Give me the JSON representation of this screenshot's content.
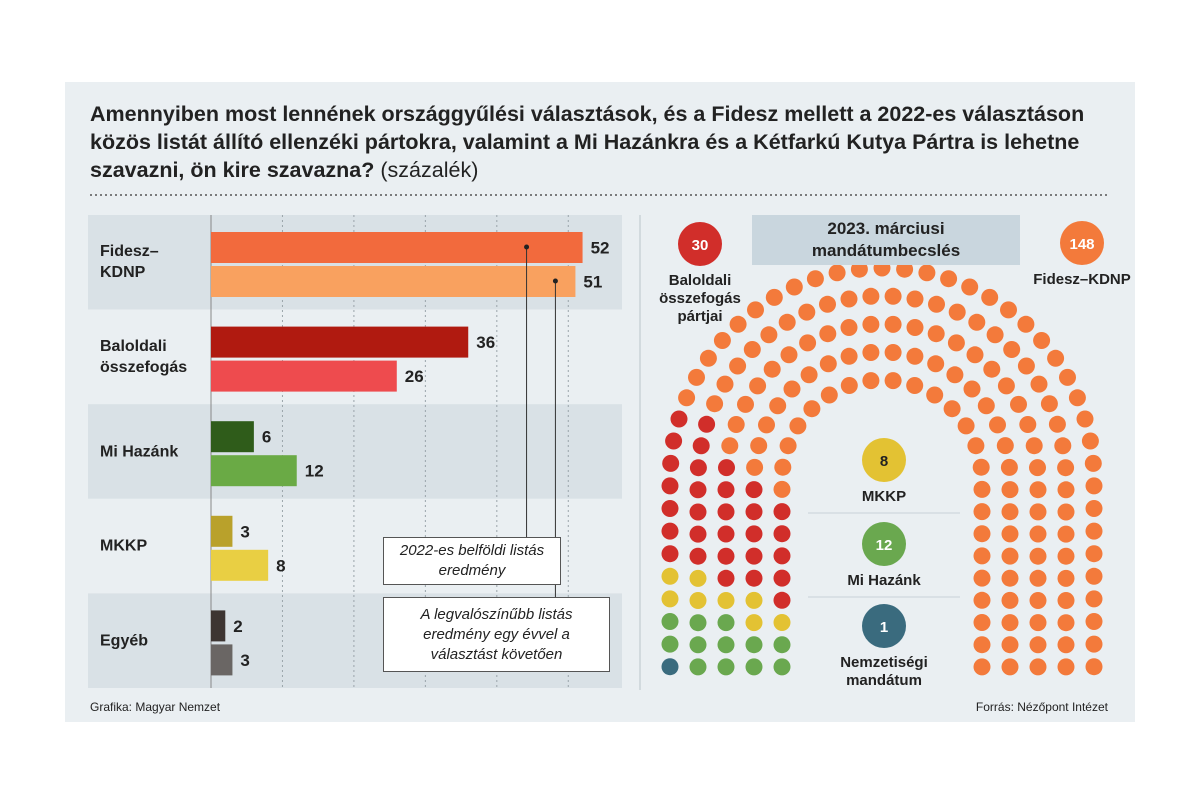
{
  "chart_data": [
    {
      "type": "bar",
      "orientation": "horizontal",
      "title": "Amennyiben most lennének országgyűlési választások, és a Fidesz mellett a 2022-es választáson közös listát állító ellenzéki pártokra, valamint a Mi Hazánkra és a Kétfarkú Kutya Pártra is lehetne szavazni, ön kire szavazna?",
      "subtitle": "(százalék)",
      "categories": [
        "Fidesz–KDNP",
        "Baloldali összefogás",
        "Mi Hazánk",
        "MKKP",
        "Egyéb"
      ],
      "series": [
        {
          "name": "2022-es belföldi listás eredmény",
          "colors": [
            "#f26a3d",
            "#b01a10",
            "#2f5c1a",
            "#b9a12b",
            "#3d3532"
          ],
          "values": [
            52,
            36,
            6,
            3,
            2
          ]
        },
        {
          "name": "A legvalószínűbb listás eredmény egy évvel a választást követően",
          "colors": [
            "#f9a15f",
            "#ee4b4e",
            "#6aaa45",
            "#e9cf43",
            "#6a6664"
          ],
          "values": [
            51,
            26,
            12,
            8,
            3
          ]
        }
      ],
      "xlim": [
        0,
        55
      ],
      "xticks": [
        0,
        10,
        20,
        30,
        40,
        50
      ],
      "grid": true
    },
    {
      "type": "parliament",
      "title": "2023. márciusi mandátumbecslés",
      "categories": [
        "Nemzetiségi mandátum",
        "Mi Hazánk",
        "MKKP",
        "Baloldali összefogás pártjai",
        "Fidesz–KDNP"
      ],
      "values": [
        1,
        12,
        8,
        30,
        148
      ],
      "colors": [
        "#3a6b7e",
        "#6aa84f",
        "#e3c233",
        "#d12e2a",
        "#f37a3b"
      ]
    }
  ],
  "credit": "Grafika: Magyar Nemzet",
  "source": "Forrás: Nézőpont Intézet"
}
